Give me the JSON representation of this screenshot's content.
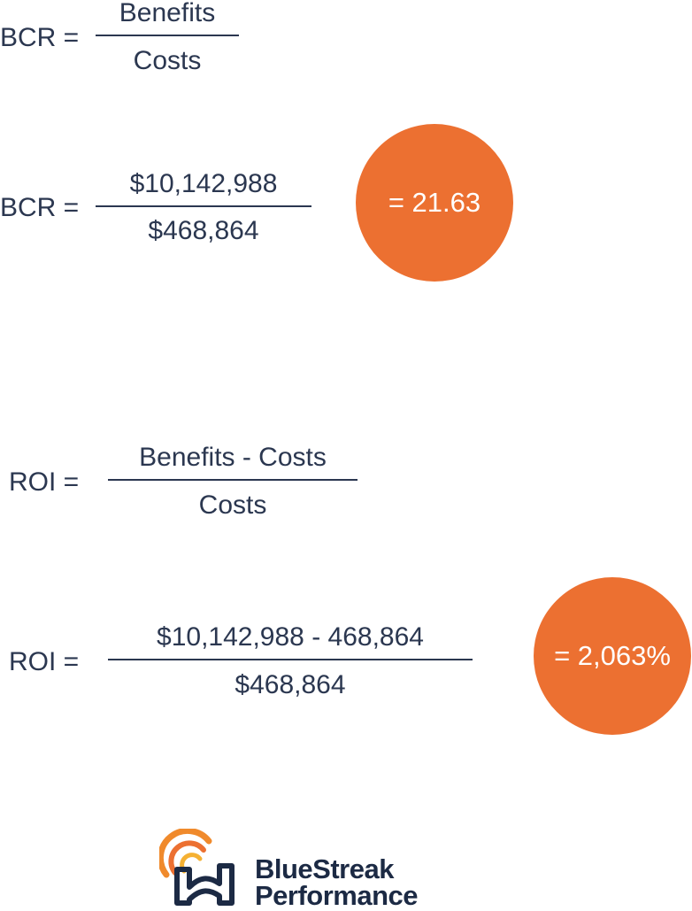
{
  "colors": {
    "text": "#2b3750",
    "accent": "#ec7031",
    "logo_navy": "#1c2a44"
  },
  "bcr_formula": {
    "label": "BCR =",
    "numerator": "Benefits",
    "denominator": "Costs"
  },
  "bcr_calc": {
    "label": "BCR =",
    "numerator": "$10,142,988",
    "denominator": "$468,864",
    "result": "= 21.63"
  },
  "roi_formula": {
    "label": "ROI =",
    "numerator": "Benefits - Costs",
    "denominator": "Costs"
  },
  "roi_calc": {
    "label": "ROI =",
    "numerator": "$10,142,988 - 468,864",
    "denominator": "$468,864",
    "result": "= 2,063%"
  },
  "logo": {
    "line1": "BlueStreak",
    "line2": "Performance",
    "icon": "bluestreak-logo-icon"
  }
}
